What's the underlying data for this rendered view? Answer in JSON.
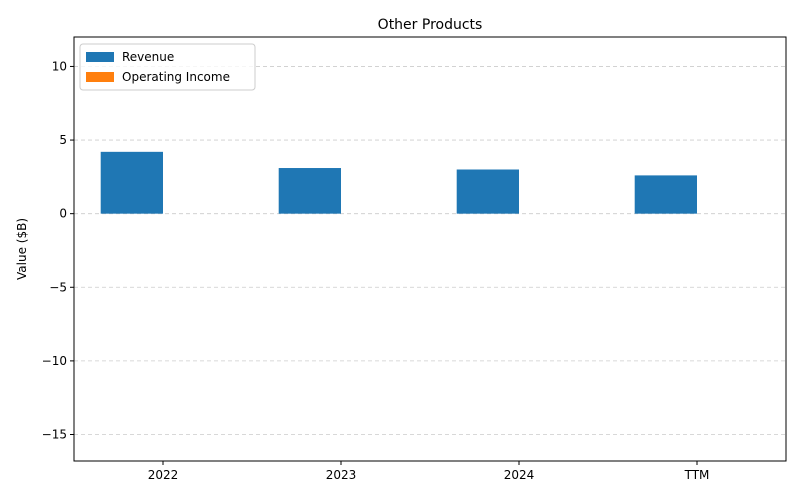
{
  "chart_data": {
    "type": "bar",
    "title": "Other Products",
    "xlabel": "",
    "ylabel": "Value ($B)",
    "categories": [
      "2022",
      "2023",
      "2024",
      "TTM"
    ],
    "series": [
      {
        "name": "Revenue",
        "values": [
          4.2,
          3.1,
          3.0,
          2.6
        ],
        "color": "#1f77b4"
      },
      {
        "name": "Operating Income",
        "values": [
          0,
          0,
          0,
          0
        ],
        "color": "#ff7f0e"
      }
    ],
    "ylim": [
      -16.8,
      12
    ],
    "yticks": [
      -15,
      -10,
      -5,
      0,
      5,
      10
    ],
    "ytick_labels": [
      "−15",
      "−10",
      "−5",
      "0",
      "5",
      "10"
    ],
    "grid": true,
    "legend_position": "top-left"
  }
}
